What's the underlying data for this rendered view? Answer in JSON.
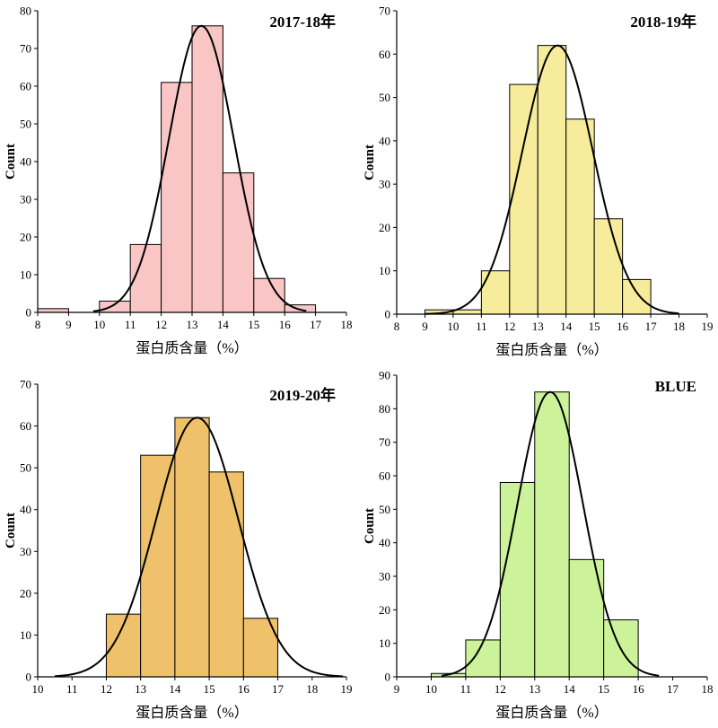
{
  "chart_data": [
    {
      "type": "bar",
      "title": "2017-18年",
      "xlabel": "蛋白质含量（%）",
      "ylabel": "Count",
      "xlim": [
        8,
        18
      ],
      "ylim": [
        0,
        80
      ],
      "xticks": [
        8,
        9,
        10,
        11,
        12,
        13,
        14,
        15,
        16,
        17,
        18
      ],
      "yticks": [
        0,
        10,
        20,
        30,
        40,
        50,
        60,
        70,
        80
      ],
      "bins": [
        {
          "x0": 8,
          "x1": 9,
          "count": 1
        },
        {
          "x0": 10,
          "x1": 11,
          "count": 3
        },
        {
          "x0": 11,
          "x1": 12,
          "count": 18
        },
        {
          "x0": 12,
          "x1": 13,
          "count": 61
        },
        {
          "x0": 13,
          "x1": 14,
          "count": 76
        },
        {
          "x0": 14,
          "x1": 15,
          "count": 37
        },
        {
          "x0": 15,
          "x1": 16,
          "count": 9
        },
        {
          "x0": 16,
          "x1": 17,
          "count": 2
        }
      ],
      "curve": {
        "mean": 13.3,
        "sd": 1.05,
        "peak": 76,
        "x_from": 9.8,
        "x_to": 16.7
      },
      "bar_color": "#f9c5c5",
      "grid": false
    },
    {
      "type": "bar",
      "title": "2018-19年",
      "xlabel": "蛋白质含量（%）",
      "ylabel": "Count",
      "xlim": [
        8,
        19
      ],
      "ylim": [
        0,
        70
      ],
      "xticks": [
        8,
        9,
        10,
        11,
        12,
        13,
        14,
        15,
        16,
        17,
        18,
        19
      ],
      "yticks": [
        0,
        10,
        20,
        30,
        40,
        50,
        60,
        70
      ],
      "bins": [
        {
          "x0": 9,
          "x1": 10,
          "count": 1
        },
        {
          "x0": 10,
          "x1": 11,
          "count": 1
        },
        {
          "x0": 11,
          "x1": 12,
          "count": 10
        },
        {
          "x0": 12,
          "x1": 13,
          "count": 53
        },
        {
          "x0": 13,
          "x1": 14,
          "count": 62
        },
        {
          "x0": 14,
          "x1": 15,
          "count": 45
        },
        {
          "x0": 15,
          "x1": 16,
          "count": 22
        },
        {
          "x0": 16,
          "x1": 17,
          "count": 8
        }
      ],
      "curve": {
        "mean": 13.7,
        "sd": 1.25,
        "peak": 62,
        "x_from": 9.0,
        "x_to": 18.0
      },
      "bar_color": "#f6ec9b",
      "grid": false
    },
    {
      "type": "bar",
      "title": "2019-20年",
      "xlabel": "蛋白质含量（%）",
      "ylabel": "Count",
      "xlim": [
        10,
        19
      ],
      "ylim": [
        0,
        70
      ],
      "xticks": [
        10,
        11,
        12,
        13,
        14,
        15,
        16,
        17,
        18,
        19
      ],
      "yticks": [
        0,
        10,
        20,
        30,
        40,
        50,
        60,
        70
      ],
      "bins": [
        {
          "x0": 12,
          "x1": 13,
          "count": 15
        },
        {
          "x0": 13,
          "x1": 14,
          "count": 53
        },
        {
          "x0": 14,
          "x1": 15,
          "count": 62
        },
        {
          "x0": 15,
          "x1": 16,
          "count": 49
        },
        {
          "x0": 16,
          "x1": 17,
          "count": 14
        }
      ],
      "curve": {
        "mean": 14.65,
        "sd": 1.2,
        "peak": 62,
        "x_from": 10.5,
        "x_to": 18.9
      },
      "bar_color": "#efc16b",
      "grid": false
    },
    {
      "type": "bar",
      "title": "BLUE",
      "xlabel": "蛋白质含量（%）",
      "ylabel": "Count",
      "xlim": [
        9,
        18
      ],
      "ylim": [
        0,
        90
      ],
      "xticks": [
        9,
        10,
        11,
        12,
        13,
        14,
        15,
        16,
        17,
        18
      ],
      "yticks": [
        0,
        10,
        20,
        30,
        40,
        50,
        60,
        70,
        80,
        90
      ],
      "bins": [
        {
          "x0": 10,
          "x1": 11,
          "count": 1
        },
        {
          "x0": 11,
          "x1": 12,
          "count": 11
        },
        {
          "x0": 12,
          "x1": 13,
          "count": 58
        },
        {
          "x0": 13,
          "x1": 14,
          "count": 85
        },
        {
          "x0": 14,
          "x1": 15,
          "count": 35
        },
        {
          "x0": 15,
          "x1": 16,
          "count": 17
        }
      ],
      "curve": {
        "mean": 13.45,
        "sd": 0.95,
        "peak": 85,
        "x_from": 10.3,
        "x_to": 16.6
      },
      "bar_color": "#ccf39a",
      "grid": false
    }
  ]
}
